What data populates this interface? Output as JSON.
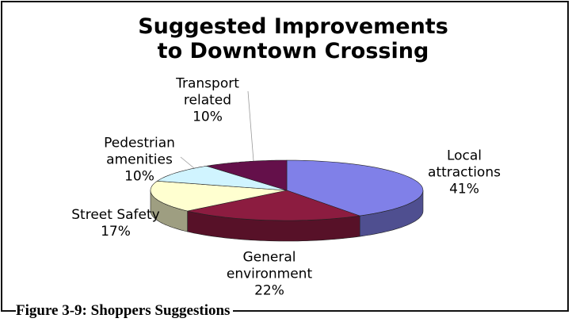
{
  "chart_data": {
    "type": "pie",
    "title": "Suggested Improvements to Downtown Crossing",
    "categories": [
      "Local attractions",
      "General environment",
      "Street Safety",
      "Pedestrian amenities",
      "Transport related"
    ],
    "values": [
      41,
      22,
      17,
      10,
      10
    ],
    "value_labels": [
      "41%",
      "22%",
      "17%",
      "10%",
      "10%"
    ],
    "colors": [
      "#8080e8",
      "#8c1c40",
      "#ffffd0",
      "#d0f4ff",
      "#64104a"
    ],
    "caption": "Figure 3-9: Shoppers Suggestions"
  }
}
